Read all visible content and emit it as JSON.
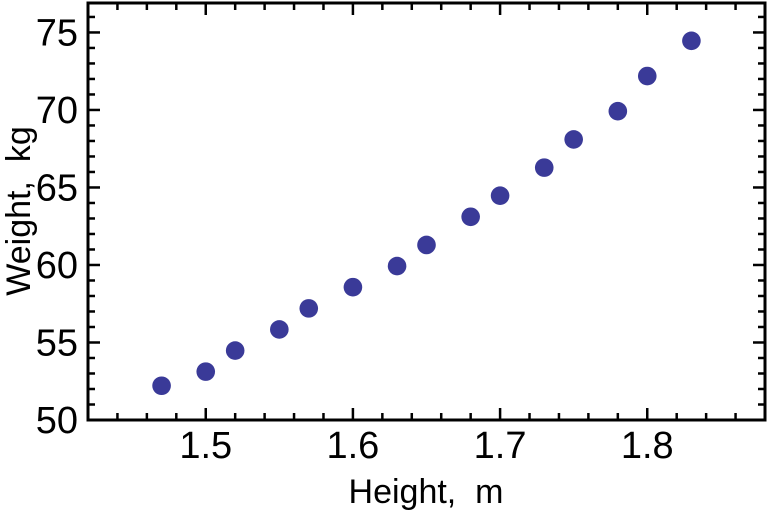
{
  "chart_data": {
    "type": "scatter",
    "title": "",
    "xlabel": "Height,  m",
    "ylabel": "Weight,  kg",
    "x": [
      1.47,
      1.5,
      1.52,
      1.55,
      1.57,
      1.6,
      1.63,
      1.65,
      1.68,
      1.7,
      1.73,
      1.75,
      1.78,
      1.8,
      1.83
    ],
    "y": [
      52.21,
      53.12,
      54.48,
      55.84,
      57.2,
      58.57,
      59.93,
      61.29,
      63.11,
      64.47,
      66.28,
      68.1,
      69.92,
      72.19,
      74.46
    ],
    "xlim": [
      1.42,
      1.88
    ],
    "ylim": [
      50,
      76.9
    ],
    "xticks": [
      1.5,
      1.6,
      1.7,
      1.8
    ],
    "xtick_labels": [
      "1.5",
      "1.6",
      "1.7",
      "1.8"
    ],
    "yticks": [
      50,
      55,
      60,
      65,
      70,
      75
    ],
    "ytick_labels": [
      "50",
      "55",
      "60",
      "65",
      "70",
      "75"
    ],
    "x_minor_tick_step": 0.02,
    "y_minor_tick_step": 1,
    "grid": false,
    "legend": null,
    "point_color": "#3a3a98",
    "axis_color": "#000000",
    "background_color": "#ffffff"
  }
}
